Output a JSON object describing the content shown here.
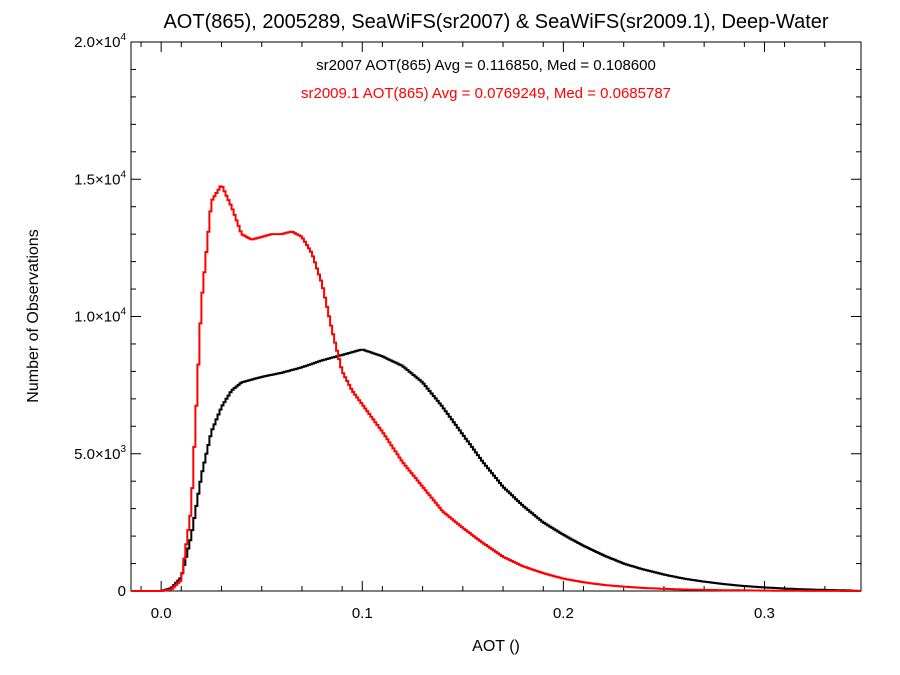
{
  "chart_data": {
    "type": "line",
    "title": "AOT(865), 2005289, SeaWiFS(sr2007) & SeaWiFS(sr2009.1), Deep-Water",
    "xlabel": "AOT ()",
    "ylabel": "Number of Observations",
    "xlim": [
      -0.015,
      0.348
    ],
    "ylim": [
      0,
      20000
    ],
    "grid": false,
    "x_ticks": [
      {
        "value": 0.0,
        "label": "0.0"
      },
      {
        "value": 0.1,
        "label": "0.1"
      },
      {
        "value": 0.2,
        "label": "0.2"
      },
      {
        "value": 0.3,
        "label": "0.3"
      }
    ],
    "y_ticks": [
      {
        "value": 0,
        "label": "0",
        "base": "0",
        "exp": ""
      },
      {
        "value": 5000,
        "label": "5.0×10³",
        "base": "5.0×10",
        "exp": "3"
      },
      {
        "value": 10000,
        "label": "1.0×10⁴",
        "base": "1.0×10",
        "exp": "4"
      },
      {
        "value": 15000,
        "label": "1.5×10⁴",
        "base": "1.5×10",
        "exp": "4"
      },
      {
        "value": 20000,
        "label": "2.0×10⁴",
        "base": "2.0×10",
        "exp": "4"
      }
    ],
    "annotations": [
      {
        "text": "sr2007 AOT(865) Avg = 0.116850, Med = 0.108600",
        "color": "#000000"
      },
      {
        "text": "sr2009.1 AOT(865) Avg = 0.0769249, Med = 0.0685787",
        "color": "#ff0000"
      }
    ],
    "series": [
      {
        "color": "#000000",
        "style": "step",
        "x": [
          -0.015,
          0.0,
          0.005,
          0.01,
          0.015,
          0.02,
          0.025,
          0.03,
          0.035,
          0.04,
          0.045,
          0.05,
          0.06,
          0.07,
          0.08,
          0.09,
          0.1,
          0.11,
          0.12,
          0.13,
          0.14,
          0.15,
          0.16,
          0.17,
          0.18,
          0.19,
          0.2,
          0.21,
          0.22,
          0.23,
          0.24,
          0.25,
          0.26,
          0.27,
          0.28,
          0.29,
          0.3,
          0.31,
          0.32,
          0.33,
          0.34,
          0.348
        ],
        "y": [
          0,
          0,
          100,
          500,
          2000,
          4200,
          5800,
          6700,
          7300,
          7600,
          7700,
          7800,
          7950,
          8150,
          8400,
          8600,
          8800,
          8550,
          8200,
          7600,
          6700,
          5700,
          4700,
          3800,
          3100,
          2500,
          2050,
          1650,
          1300,
          1000,
          780,
          600,
          450,
          340,
          250,
          180,
          130,
          90,
          60,
          40,
          25,
          0
        ]
      },
      {
        "color": "#ff0000",
        "style": "step",
        "x": [
          -0.015,
          0.0,
          0.005,
          0.01,
          0.015,
          0.02,
          0.025,
          0.03,
          0.035,
          0.04,
          0.045,
          0.05,
          0.055,
          0.06,
          0.065,
          0.07,
          0.075,
          0.08,
          0.085,
          0.09,
          0.095,
          0.1,
          0.11,
          0.12,
          0.13,
          0.14,
          0.15,
          0.16,
          0.17,
          0.18,
          0.19,
          0.2,
          0.21,
          0.22,
          0.23,
          0.24,
          0.25,
          0.26,
          0.28,
          0.3,
          0.32,
          0.348
        ],
        "y": [
          0,
          0,
          50,
          400,
          3000,
          10500,
          14200,
          14800,
          14000,
          13000,
          12800,
          12900,
          13000,
          13000,
          13100,
          12900,
          12300,
          11200,
          9500,
          8000,
          7300,
          6800,
          5800,
          4700,
          3800,
          2900,
          2300,
          1750,
          1250,
          900,
          650,
          450,
          320,
          220,
          160,
          110,
          80,
          55,
          30,
          15,
          5,
          0
        ]
      }
    ]
  }
}
